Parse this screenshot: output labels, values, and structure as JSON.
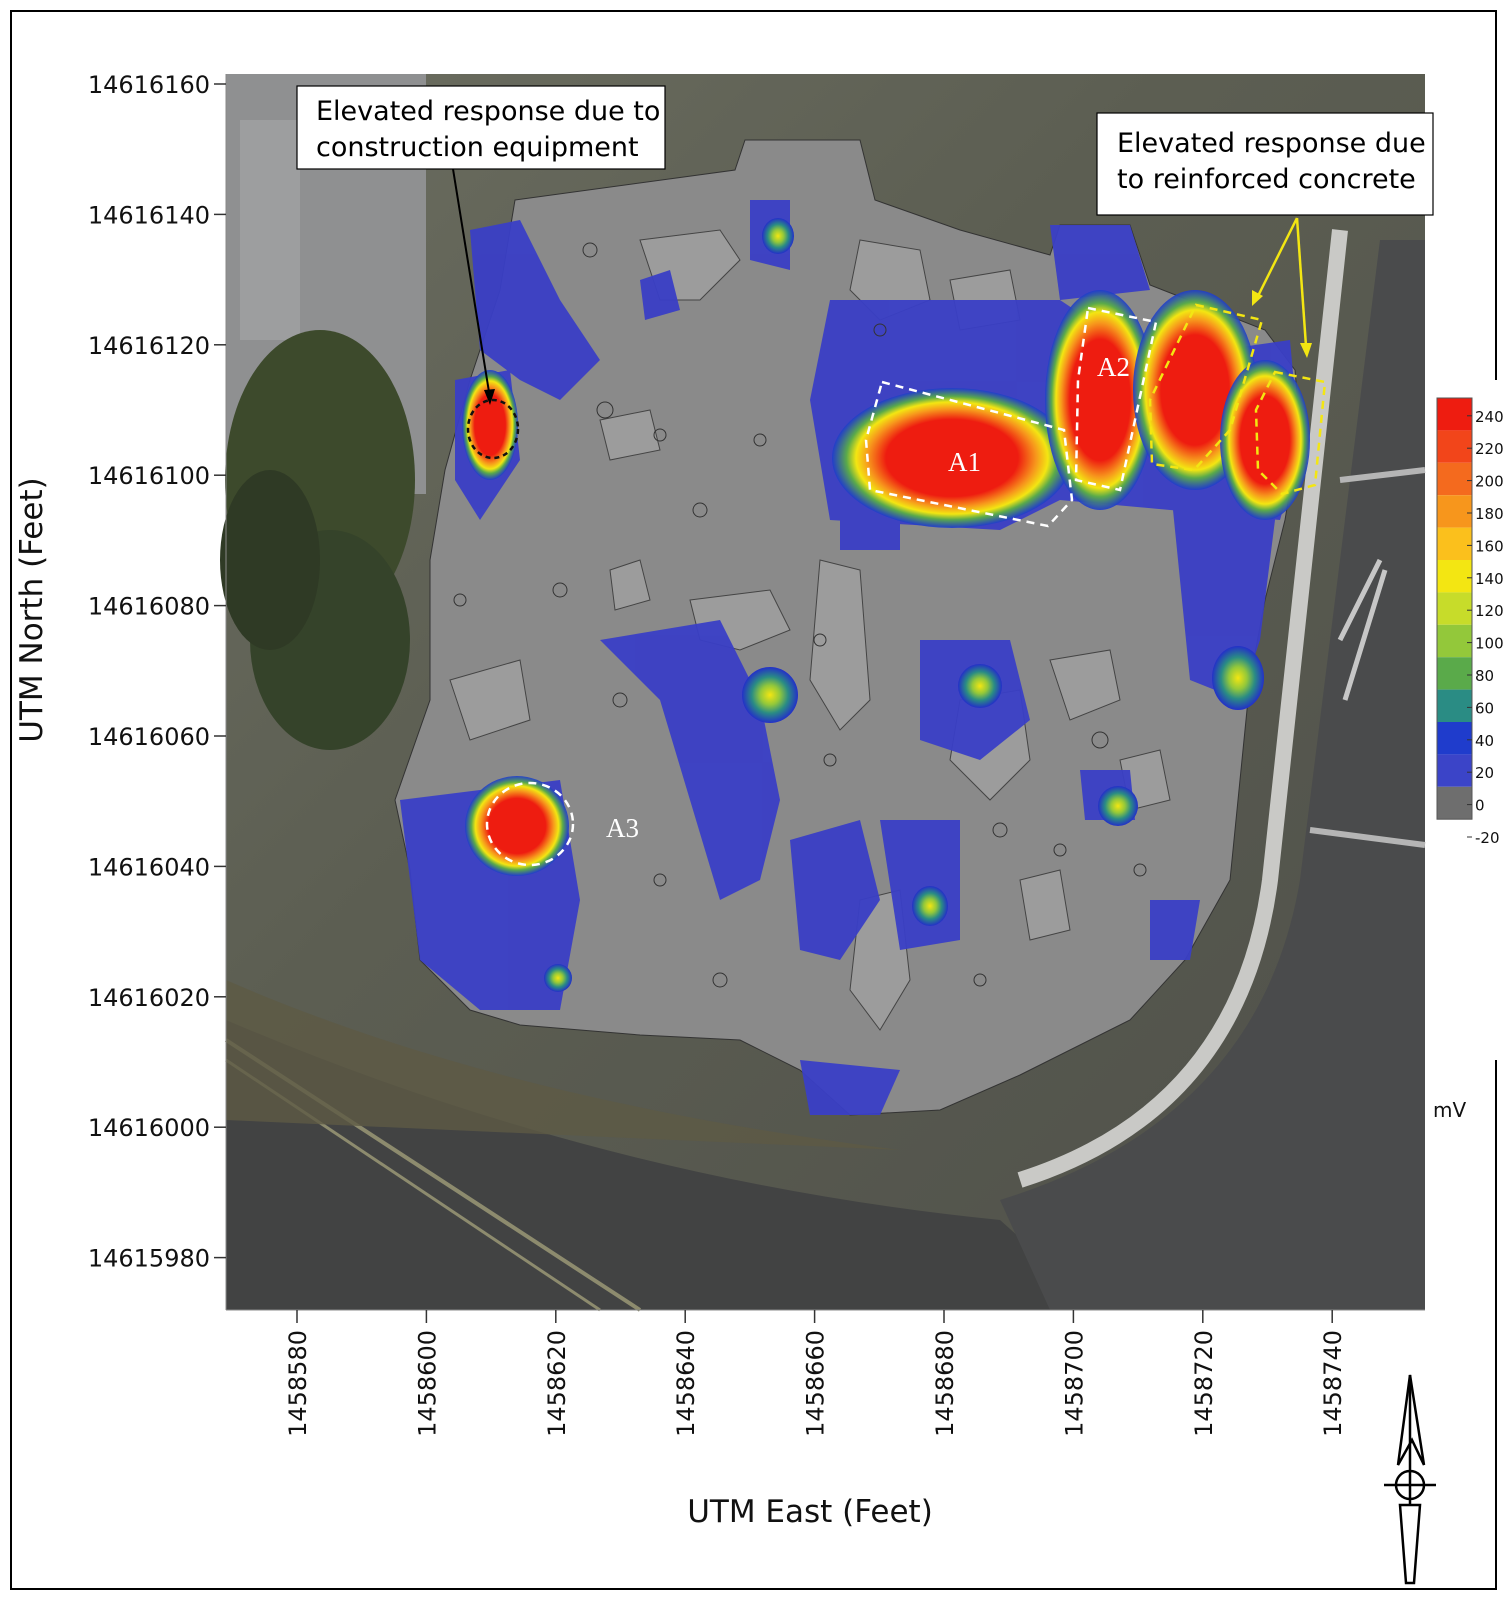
{
  "figure": {
    "x_axis_label": "UTM East (Feet)",
    "y_axis_label": "UTM North (Feet)",
    "x_ticks": [
      "1458580",
      "1458600",
      "1458620",
      "1458640",
      "1458660",
      "1458680",
      "1458700",
      "1458720",
      "1458740"
    ],
    "y_ticks": [
      "14616160",
      "14616140",
      "14616120",
      "14616100",
      "14616080",
      "14616060",
      "14616040",
      "14616020",
      "14616000",
      "14615980"
    ]
  },
  "callouts": {
    "construction": [
      "Elevated response due to",
      "construction equipment"
    ],
    "concrete": [
      "Elevated response due",
      "to reinforced concrete"
    ]
  },
  "anomalies": {
    "a1": "A1",
    "a2": "A2",
    "a3": "A3"
  },
  "colorbar": {
    "unit": "mV",
    "labels": [
      "240",
      "220",
      "200",
      "180",
      "160",
      "140",
      "120",
      "100",
      "80",
      "60",
      "40",
      "20",
      "0",
      "-20"
    ],
    "colors": [
      "#ee1c10",
      "#f2451a",
      "#f46a1e",
      "#f7961c",
      "#fbc01c",
      "#f3e612",
      "#c7dc2a",
      "#93c83a",
      "#5aaa4a",
      "#2a8c84",
      "#1f3ccc",
      "#3b44c8",
      "#6e6e6e",
      "#999999"
    ]
  },
  "map_colors": {
    "background_gray": "#8a8a8a",
    "blue": "#3a3fc6",
    "red": "#ec2a1a"
  }
}
